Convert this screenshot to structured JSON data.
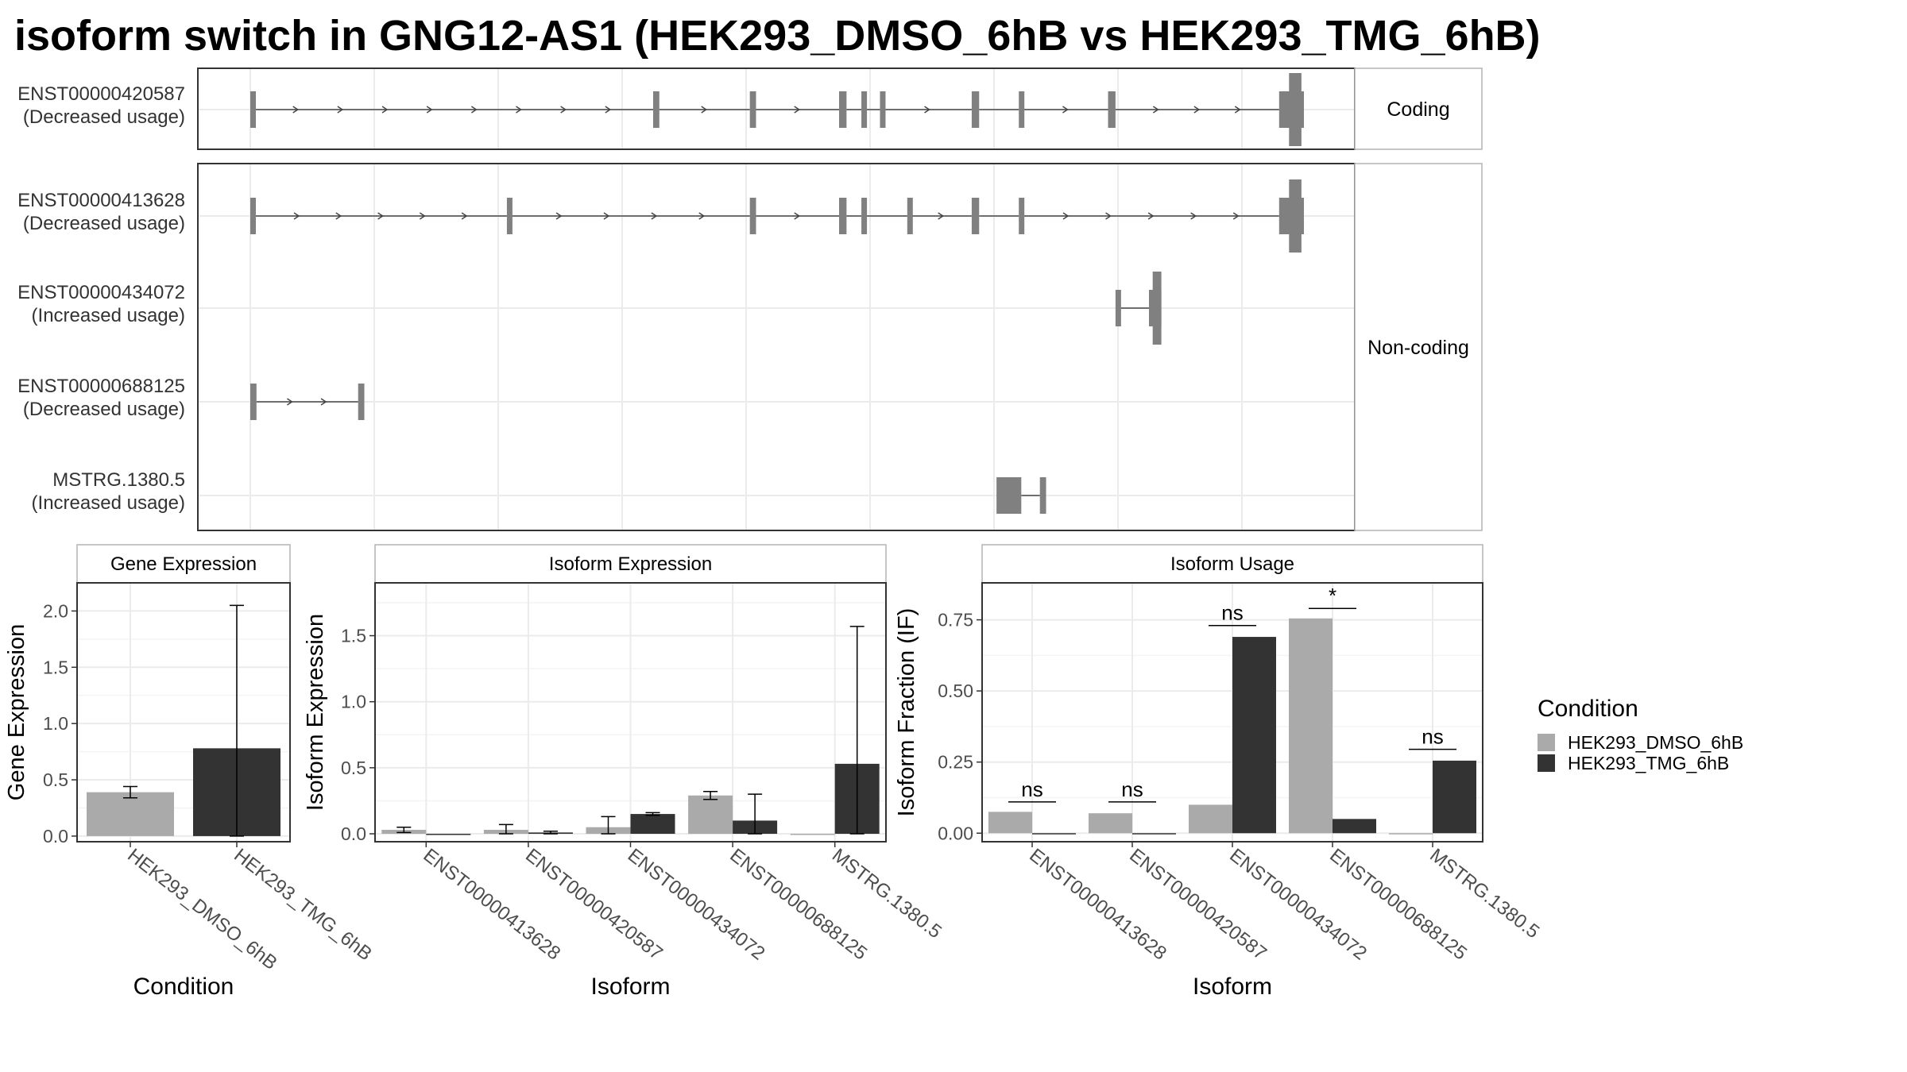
{
  "title": "isoform switch in GNG12-AS1 (HEK293_DMSO_6hB vs HEK293_TMG_6hB)",
  "colors": {
    "dmso": "#aaaaaa",
    "tmg": "#333333",
    "exon": "#808080",
    "grid": "#ebebeb",
    "border": "#333333"
  },
  "chart_data": [
    {
      "type": "gene-structure",
      "panels": [
        {
          "strip": "Coding",
          "transcripts": [
            {
              "id": "ENST00000420587",
              "label_line1": "ENST00000420587",
              "label_line2": "(Decreased usage)",
              "exons": [
                [
                  0.0,
                  0.01
                ],
                [
                  3.25,
                  3.3
                ],
                [
                  4.03,
                  4.08
                ],
                [
                  4.75,
                  4.81
                ],
                [
                  4.93,
                  4.96
                ],
                [
                  5.08,
                  5.11
                ],
                [
                  5.82,
                  5.88
                ],
                [
                  6.2,
                  6.24
                ],
                [
                  6.92,
                  6.98
                ],
                [
                  8.3,
                  8.5
                ]
              ],
              "cds": [
                [
                  8.38,
                  8.48
                ]
              ]
            }
          ]
        },
        {
          "strip": "Non-coding",
          "transcripts": [
            {
              "id": "ENST00000413628",
              "label_line1": "ENST00000413628",
              "label_line2": "(Decreased usage)",
              "exons": [
                [
                  0.0,
                  0.04
                ],
                [
                  2.07,
                  2.11
                ],
                [
                  4.03,
                  4.08
                ],
                [
                  4.75,
                  4.81
                ],
                [
                  4.93,
                  4.96
                ],
                [
                  5.3,
                  5.33
                ],
                [
                  5.82,
                  5.88
                ],
                [
                  6.2,
                  6.24
                ],
                [
                  8.3,
                  8.5
                ]
              ],
              "cds": [
                [
                  8.38,
                  8.48
                ]
              ]
            },
            {
              "id": "ENST00000434072",
              "label_line1": "ENST00000434072",
              "label_line2": "(Increased usage)",
              "exons": [
                [
                  6.98,
                  7.01
                ],
                [
                  7.25,
                  7.35
                ]
              ],
              "cds": [
                [
                  7.28,
                  7.35
                ]
              ]
            },
            {
              "id": "ENST00000688125",
              "label_line1": "ENST00000688125",
              "label_line2": "(Decreased usage)",
              "exons": [
                [
                  0.0,
                  0.05
                ],
                [
                  0.87,
                  0.92
                ]
              ],
              "cds": []
            },
            {
              "id": "MSTRG.1380.5",
              "label_line1": "MSTRG.1380.5",
              "label_line2": "(Increased usage)",
              "exons": [
                [
                  6.02,
                  6.22
                ],
                [
                  6.37,
                  6.42
                ]
              ],
              "cds": []
            }
          ]
        }
      ]
    },
    {
      "type": "bar",
      "strip": "Gene Expression",
      "xlabel": "Condition",
      "ylabel": "Gene Expression",
      "ylim": [
        -0.05,
        2.25
      ],
      "yticks": [
        "0.0",
        "0.5",
        "1.0",
        "1.5",
        "2.0"
      ],
      "categories": [
        "HEK293_DMSO_6hB",
        "HEK293_TMG_6hB"
      ],
      "series": [
        {
          "name": "HEK293_DMSO_6hB",
          "values": [
            0.39,
            null
          ],
          "err_low": [
            0.34,
            null
          ],
          "err_high": [
            0.44,
            null
          ]
        },
        {
          "name": "HEK293_TMG_6hB",
          "values": [
            null,
            0.78
          ],
          "err_low": [
            null,
            0.0
          ],
          "err_high": [
            null,
            2.05
          ]
        }
      ]
    },
    {
      "type": "bar",
      "strip": "Isoform Expression",
      "xlabel": "Isoform",
      "ylabel": "Isoform Expression",
      "ylim": [
        -0.06,
        1.9
      ],
      "yticks": [
        "0.0",
        "0.5",
        "1.0",
        "1.5"
      ],
      "categories": [
        "ENST00000413628",
        "ENST00000420587",
        "ENST00000434072",
        "ENST00000688125",
        "MSTRG.1380.5"
      ],
      "series": [
        {
          "name": "HEK293_DMSO_6hB",
          "values": [
            0.03,
            0.03,
            0.05,
            0.29,
            0.0
          ],
          "err_low": [
            0.01,
            0.0,
            0.0,
            0.26,
            null
          ],
          "err_high": [
            0.05,
            0.07,
            0.13,
            0.32,
            null
          ]
        },
        {
          "name": "HEK293_TMG_6hB",
          "values": [
            0.0,
            0.01,
            0.15,
            0.1,
            0.53
          ],
          "err_low": [
            null,
            0.0,
            0.14,
            0.0,
            0.0
          ],
          "err_high": [
            null,
            0.02,
            0.16,
            0.3,
            1.57
          ]
        }
      ]
    },
    {
      "type": "bar",
      "strip": "Isoform Usage",
      "xlabel": "Isoform",
      "ylabel": "Isoform Fraction (IF)",
      "ylim": [
        -0.03,
        0.88
      ],
      "yticks": [
        "0.00",
        "0.25",
        "0.50",
        "0.75"
      ],
      "categories": [
        "ENST00000413628",
        "ENST00000420587",
        "ENST00000434072",
        "ENST00000688125",
        "MSTRG.1380.5"
      ],
      "series": [
        {
          "name": "HEK293_DMSO_6hB",
          "values": [
            0.075,
            0.07,
            0.1,
            0.755,
            0.0
          ]
        },
        {
          "name": "HEK293_TMG_6hB",
          "values": [
            0.0,
            0.0,
            0.69,
            0.05,
            0.255
          ]
        }
      ],
      "annotations": [
        "ns",
        "ns",
        "ns",
        "*",
        "ns"
      ],
      "annotation_y": [
        0.11,
        0.11,
        0.73,
        0.79,
        0.295
      ]
    }
  ],
  "legend": {
    "title": "Condition",
    "entries": [
      {
        "label": "HEK293_DMSO_6hB",
        "color": "#aaaaaa"
      },
      {
        "label": "HEK293_TMG_6hB",
        "color": "#333333"
      }
    ]
  }
}
